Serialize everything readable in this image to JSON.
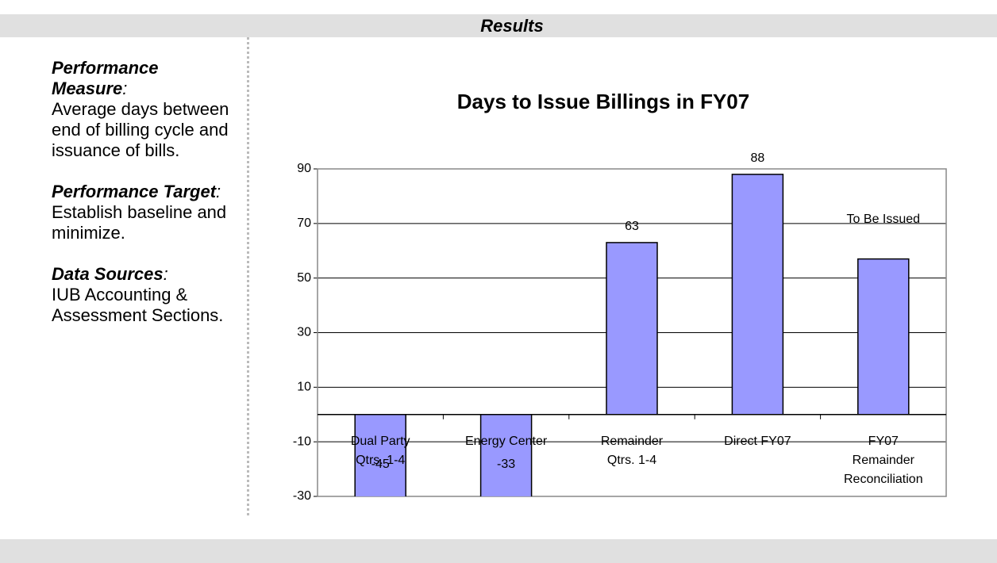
{
  "header": {
    "title": "Results"
  },
  "sidebar": [
    {
      "heading": "Performance Measure",
      "colon": ":",
      "text": "Average days between end of billing cycle and issuance of bills."
    },
    {
      "heading": "Performance Target",
      "colon": ":",
      "text": "Establish baseline and minimize."
    },
    {
      "heading": "Data Sources",
      "colon": ":",
      "text": "IUB Accounting & Assessment Sections."
    }
  ],
  "chart_data": {
    "type": "bar",
    "title": "Days to Issue Billings in FY07",
    "categories": [
      [
        "Dual Party",
        "Qtrs. 1-4"
      ],
      [
        "Energy Center"
      ],
      [
        "Remainder",
        "Qtrs. 1-4"
      ],
      [
        "Direct FY07"
      ],
      [
        "FY07",
        "Remainder",
        "Reconciliation"
      ]
    ],
    "values": [
      -45,
      -33,
      63,
      88,
      57
    ],
    "value_labels": [
      "-45",
      "-33",
      "63",
      "88",
      null
    ],
    "annotation": "To Be Issued",
    "color": "#9999ff",
    "ylim": [
      -30,
      90
    ],
    "yticks": [
      -30,
      -10,
      10,
      30,
      50,
      70,
      90
    ],
    "grid": true
  }
}
